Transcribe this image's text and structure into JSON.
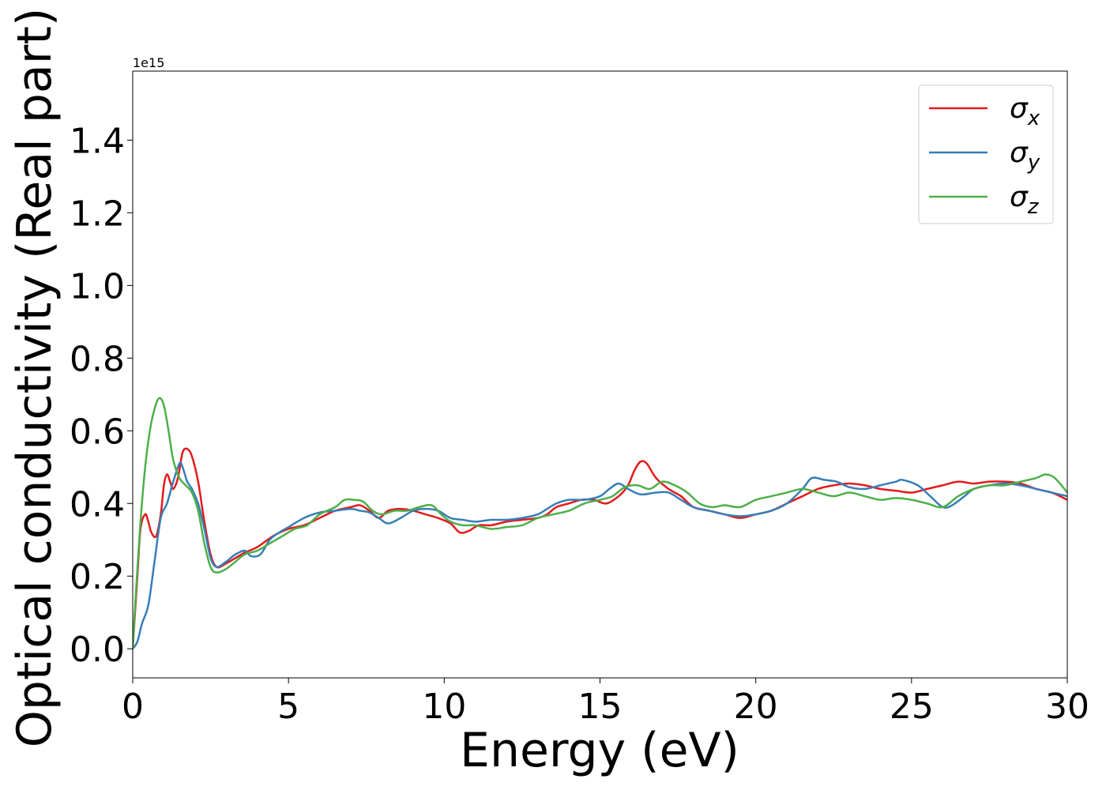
{
  "chart_data": {
    "type": "line",
    "xlabel": "Energy (eV)",
    "ylabel": "Optical conductivity (Real part)",
    "offset_text": "1e15",
    "xlim": [
      0,
      30
    ],
    "ylim": [
      -0.08,
      1.59
    ],
    "xticks": [
      0,
      5,
      10,
      15,
      20,
      25,
      30
    ],
    "yticks": [
      0.0,
      0.2,
      0.4,
      0.6,
      0.8,
      1.0,
      1.2,
      1.4
    ],
    "grid": false,
    "legend_position": "top-right",
    "series": [
      {
        "name": "σ",
        "subscript": "x",
        "color": "#e41a1c",
        "x": [
          0,
          0.15,
          0.25,
          0.4,
          0.5,
          0.6,
          0.75,
          0.9,
          1.0,
          1.1,
          1.2,
          1.3,
          1.45,
          1.6,
          1.75,
          1.9,
          2.1,
          2.3,
          2.5,
          2.7,
          3.0,
          3.3,
          3.6,
          4.0,
          4.5,
          5.0,
          5.5,
          6.0,
          6.5,
          7.0,
          7.3,
          7.6,
          7.9,
          8.2,
          8.6,
          9.0,
          9.4,
          9.8,
          10.2,
          10.5,
          10.8,
          11.1,
          11.5,
          12.0,
          12.5,
          13.0,
          13.3,
          13.6,
          14.0,
          14.4,
          14.8,
          15.2,
          15.6,
          15.9,
          16.1,
          16.3,
          16.5,
          16.8,
          17.2,
          17.6,
          18.0,
          18.5,
          19.0,
          19.5,
          20.0,
          20.5,
          21.0,
          21.5,
          22.0,
          22.5,
          23.0,
          23.5,
          24.0,
          24.5,
          25.0,
          25.5,
          26.0,
          26.5,
          27.0,
          27.5,
          28.0,
          28.5,
          29.0,
          29.5,
          30
        ],
        "y": [
          0.0,
          0.2,
          0.33,
          0.37,
          0.35,
          0.32,
          0.31,
          0.37,
          0.45,
          0.48,
          0.46,
          0.44,
          0.47,
          0.54,
          0.55,
          0.53,
          0.46,
          0.35,
          0.26,
          0.225,
          0.235,
          0.25,
          0.265,
          0.28,
          0.31,
          0.33,
          0.34,
          0.36,
          0.38,
          0.39,
          0.395,
          0.38,
          0.36,
          0.38,
          0.385,
          0.38,
          0.37,
          0.36,
          0.345,
          0.32,
          0.325,
          0.34,
          0.34,
          0.35,
          0.355,
          0.36,
          0.37,
          0.39,
          0.4,
          0.41,
          0.41,
          0.4,
          0.42,
          0.45,
          0.49,
          0.515,
          0.51,
          0.47,
          0.44,
          0.42,
          0.39,
          0.38,
          0.37,
          0.36,
          0.37,
          0.38,
          0.4,
          0.42,
          0.44,
          0.45,
          0.455,
          0.45,
          0.44,
          0.435,
          0.43,
          0.44,
          0.45,
          0.46,
          0.455,
          0.46,
          0.46,
          0.455,
          0.44,
          0.43,
          0.41
        ]
      },
      {
        "name": "σ",
        "subscript": "y",
        "color": "#377eb8",
        "x": [
          0,
          0.15,
          0.3,
          0.5,
          0.7,
          0.9,
          1.1,
          1.3,
          1.5,
          1.6,
          1.75,
          1.9,
          2.1,
          2.3,
          2.5,
          2.7,
          3.0,
          3.3,
          3.6,
          3.8,
          4.1,
          4.4,
          4.7,
          5.0,
          5.5,
          6.0,
          6.5,
          7.0,
          7.3,
          7.6,
          7.9,
          8.2,
          8.6,
          9.0,
          9.4,
          9.8,
          10.2,
          10.6,
          11.0,
          11.5,
          12.0,
          12.5,
          13.0,
          13.3,
          13.6,
          14.0,
          14.5,
          15.0,
          15.3,
          15.6,
          15.9,
          16.3,
          16.8,
          17.2,
          17.6,
          18.0,
          18.5,
          19.0,
          19.5,
          20.0,
          20.5,
          21.0,
          21.5,
          21.8,
          22.2,
          22.6,
          23.0,
          23.5,
          24.0,
          24.5,
          24.7,
          25.2,
          25.6,
          26.0,
          26.3,
          26.7,
          27.0,
          27.5,
          28.0,
          28.5,
          29.0,
          29.5,
          30
        ],
        "y": [
          0.0,
          0.02,
          0.07,
          0.12,
          0.24,
          0.36,
          0.4,
          0.46,
          0.51,
          0.5,
          0.46,
          0.44,
          0.4,
          0.33,
          0.25,
          0.225,
          0.24,
          0.26,
          0.27,
          0.255,
          0.26,
          0.3,
          0.32,
          0.335,
          0.36,
          0.375,
          0.38,
          0.385,
          0.38,
          0.375,
          0.36,
          0.345,
          0.36,
          0.38,
          0.385,
          0.38,
          0.36,
          0.355,
          0.35,
          0.355,
          0.355,
          0.36,
          0.37,
          0.385,
          0.4,
          0.41,
          0.41,
          0.42,
          0.44,
          0.455,
          0.44,
          0.425,
          0.43,
          0.43,
          0.41,
          0.39,
          0.38,
          0.37,
          0.365,
          0.37,
          0.38,
          0.4,
          0.44,
          0.47,
          0.465,
          0.46,
          0.445,
          0.44,
          0.45,
          0.46,
          0.465,
          0.45,
          0.42,
          0.39,
          0.395,
          0.42,
          0.44,
          0.45,
          0.455,
          0.45,
          0.44,
          0.43,
          0.42
        ]
      },
      {
        "name": "σ",
        "subscript": "z",
        "color": "#4daf4a",
        "x": [
          0,
          0.1,
          0.25,
          0.4,
          0.55,
          0.7,
          0.85,
          1.0,
          1.15,
          1.3,
          1.5,
          1.7,
          1.9,
          2.1,
          2.3,
          2.5,
          2.7,
          3.0,
          3.3,
          3.6,
          4.0,
          4.4,
          4.8,
          5.2,
          5.6,
          6.0,
          6.5,
          6.8,
          7.1,
          7.4,
          7.7,
          8.0,
          8.4,
          8.8,
          9.2,
          9.6,
          9.9,
          10.2,
          10.6,
          11.0,
          11.5,
          12.0,
          12.5,
          13.0,
          13.5,
          14.0,
          14.5,
          15.0,
          15.4,
          15.8,
          16.2,
          16.6,
          17.0,
          17.4,
          17.8,
          18.2,
          18.6,
          19.0,
          19.5,
          20.0,
          20.5,
          21.0,
          21.5,
          22.0,
          22.5,
          23.0,
          23.5,
          24.0,
          24.5,
          25.0,
          25.5,
          26.0,
          26.5,
          27.0,
          27.5,
          28.0,
          28.5,
          29.0,
          29.3,
          29.6,
          30
        ],
        "y": [
          0.0,
          0.15,
          0.35,
          0.5,
          0.6,
          0.66,
          0.69,
          0.67,
          0.6,
          0.52,
          0.47,
          0.45,
          0.43,
          0.38,
          0.29,
          0.225,
          0.21,
          0.22,
          0.24,
          0.26,
          0.27,
          0.29,
          0.31,
          0.33,
          0.34,
          0.37,
          0.39,
          0.41,
          0.41,
          0.405,
          0.38,
          0.37,
          0.38,
          0.38,
          0.39,
          0.395,
          0.37,
          0.35,
          0.34,
          0.34,
          0.33,
          0.335,
          0.34,
          0.36,
          0.37,
          0.38,
          0.4,
          0.41,
          0.42,
          0.445,
          0.45,
          0.44,
          0.46,
          0.45,
          0.43,
          0.4,
          0.39,
          0.395,
          0.39,
          0.41,
          0.42,
          0.43,
          0.44,
          0.43,
          0.42,
          0.43,
          0.42,
          0.41,
          0.415,
          0.41,
          0.4,
          0.39,
          0.42,
          0.44,
          0.45,
          0.45,
          0.46,
          0.47,
          0.48,
          0.47,
          0.43
        ]
      }
    ]
  }
}
